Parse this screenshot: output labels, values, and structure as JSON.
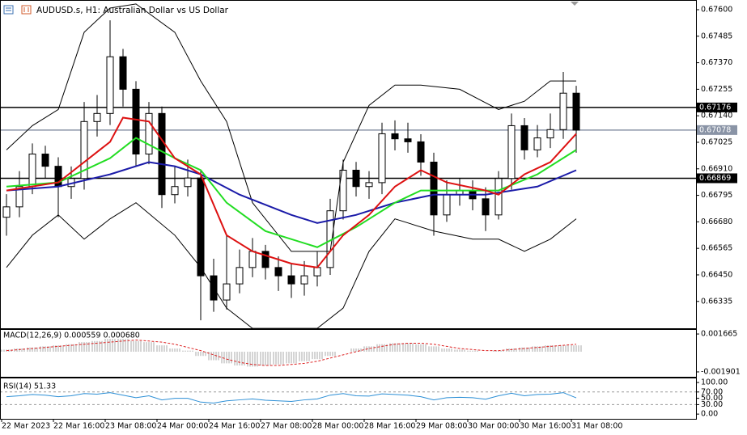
{
  "chart_data": [
    {
      "type": "candlestick",
      "title": "AUDUSD.s, H1:  Australian Dollar vs US Dollar",
      "categories": [
        "22 Mar 2023",
        null,
        null,
        null,
        "22 Mar 16:00",
        null,
        null,
        null,
        "23 Mar 08:00",
        null,
        null,
        null,
        "24 Mar 00:00",
        null,
        null,
        null,
        "24 Mar 16:00",
        null,
        null,
        null,
        "27 Mar 08:00",
        null,
        null,
        null,
        "28 Mar 00:00",
        null,
        null,
        null,
        "28 Mar 16:00",
        null,
        null,
        null,
        "29 Mar 08:00",
        null,
        null,
        null,
        "30 Mar 00:00",
        null,
        null,
        null,
        "30 Mar 16:00",
        null,
        null,
        null,
        "31 Mar 08:00"
      ],
      "open": [
        0.667,
        0.66745,
        0.66833,
        0.66974,
        0.66921,
        0.66833,
        0.66868,
        0.67115,
        0.6715,
        0.67396,
        0.67255,
        0.66974,
        0.6715,
        0.66798,
        0.66833,
        0.6687,
        0.66446,
        0.66341,
        0.66411,
        0.66482,
        0.66552,
        0.66482,
        0.66446,
        0.66411,
        0.66446,
        0.66482,
        0.66728,
        0.66904,
        0.66833,
        0.6685,
        0.67062,
        0.6704,
        0.67027,
        0.66939,
        0.6671,
        0.66798,
        0.66816,
        0.6678,
        0.6671,
        0.66868,
        0.67097,
        0.66992,
        0.67044,
        0.6708,
        0.67238
      ],
      "high": [
        0.668,
        0.669,
        0.6702,
        0.6701,
        0.6696,
        0.6692,
        0.672,
        0.6723,
        0.67554,
        0.6743,
        0.6729,
        0.672,
        0.6718,
        0.6692,
        0.6695,
        0.669,
        0.6652,
        0.6662,
        0.6656,
        0.6661,
        0.6658,
        0.6653,
        0.665,
        0.6651,
        0.6655,
        0.6678,
        0.6695,
        0.6694,
        0.669,
        0.6711,
        0.6712,
        0.6711,
        0.6706,
        0.6698,
        0.6686,
        0.6687,
        0.6686,
        0.6683,
        0.669,
        0.6715,
        0.6713,
        0.671,
        0.6715,
        0.6733,
        0.6727
      ],
      "low": [
        0.6662,
        0.667,
        0.668,
        0.6687,
        0.667,
        0.6678,
        0.6682,
        0.6705,
        0.671,
        0.6718,
        0.6692,
        0.6693,
        0.6674,
        0.6676,
        0.6679,
        0.66253,
        0.6629,
        0.663,
        0.6637,
        0.6644,
        0.6643,
        0.6638,
        0.6635,
        0.6636,
        0.664,
        0.6645,
        0.6669,
        0.6679,
        0.6678,
        0.668,
        0.6699,
        0.6698,
        0.6688,
        0.6662,
        0.6668,
        0.6675,
        0.6673,
        0.6664,
        0.6669,
        0.6682,
        0.6695,
        0.6696,
        0.67,
        0.6704,
        0.6698
      ],
      "close": [
        0.66745,
        0.66833,
        0.66974,
        0.66921,
        0.66833,
        0.66868,
        0.67115,
        0.6715,
        0.67396,
        0.67255,
        0.66974,
        0.6715,
        0.66798,
        0.66833,
        0.6687,
        0.66446,
        0.66341,
        0.66411,
        0.66482,
        0.66552,
        0.66482,
        0.66446,
        0.66411,
        0.66446,
        0.66482,
        0.66728,
        0.66904,
        0.66833,
        0.6685,
        0.67062,
        0.6704,
        0.67027,
        0.66939,
        0.6671,
        0.66798,
        0.66816,
        0.6678,
        0.6671,
        0.66868,
        0.67097,
        0.66992,
        0.67044,
        0.6708,
        0.67238,
        0.67078
      ],
      "up_color": "#ffffff",
      "down_color": "#000000",
      "wick_color": "#000000",
      "series": [
        {
          "color": "#000000",
          "x": [
            0,
            2,
            4,
            6,
            8,
            10,
            13,
            15,
            17,
            19,
            22,
            25,
            26,
            28,
            30,
            32,
            35,
            38,
            40,
            42,
            44
          ],
          "values": [
            0.66992,
            0.67097,
            0.67167,
            0.67502,
            0.67607,
            0.67625,
            0.67502,
            0.67291,
            0.67115,
            0.66763,
            0.66552,
            0.66552,
            0.66939,
            0.67185,
            0.67273,
            0.67273,
            0.67255,
            0.67167,
            0.67203,
            0.67291,
            0.67291
          ]
        },
        {
          "color": "#000000",
          "x": [
            0,
            2,
            4,
            6,
            8,
            10,
            13,
            15,
            17,
            19,
            24,
            26,
            28,
            30,
            33,
            36,
            38,
            40,
            42,
            44
          ],
          "values": [
            0.66482,
            0.66622,
            0.6671,
            0.66605,
            0.66693,
            0.66763,
            0.66622,
            0.66482,
            0.66306,
            0.66218,
            0.66218,
            0.66306,
            0.66552,
            0.66693,
            0.6664,
            0.66605,
            0.66605,
            0.66552,
            0.66605,
            0.66693
          ]
        },
        {
          "color": "#1a1aa8",
          "x": [
            0,
            4,
            8,
            11,
            13,
            15,
            18,
            22,
            24,
            27,
            30,
            33,
            37,
            41,
            44
          ],
          "values": [
            0.66816,
            0.66833,
            0.66886,
            0.66939,
            0.66921,
            0.66886,
            0.66798,
            0.6671,
            0.66675,
            0.6671,
            0.66763,
            0.66798,
            0.66798,
            0.66833,
            0.66904
          ]
        },
        {
          "color": "#22dd22",
          "x": [
            0,
            4,
            8,
            10,
            13,
            15,
            17,
            20,
            24,
            27,
            30,
            32,
            35,
            38,
            41,
            44
          ],
          "values": [
            0.66833,
            0.66851,
            0.66956,
            0.67044,
            0.66956,
            0.66904,
            0.66763,
            0.6664,
            0.6657,
            0.66657,
            0.66763,
            0.66816,
            0.66816,
            0.66816,
            0.66886,
            0.66992
          ]
        },
        {
          "color": "#dd1111",
          "x": [
            0,
            4,
            8,
            9,
            11,
            13,
            15,
            17,
            19,
            22,
            24,
            26,
            28,
            30,
            32,
            34,
            37,
            38,
            40,
            42,
            44
          ],
          "values": [
            0.66816,
            0.66851,
            0.67027,
            0.67132,
            0.67115,
            0.66956,
            0.66886,
            0.66622,
            0.66552,
            0.66499,
            0.66482,
            0.66622,
            0.6671,
            0.66833,
            0.66904,
            0.66851,
            0.66816,
            0.66798,
            0.66886,
            0.66939,
            0.67062
          ]
        }
      ],
      "hlines": [
        {
          "value": 0.67176,
          "color": "#000000"
        },
        {
          "value": 0.67078,
          "color": "#8a94a6"
        },
        {
          "value": 0.66869,
          "color": "#000000"
        }
      ],
      "ylim": [
        0.66222,
        0.67628
      ],
      "yticks": [
        {
          "value": 0.676,
          "label": "0.67600"
        },
        0.67485,
        {
          "value": 0.6737,
          "label": "0.67370"
        },
        0.67255,
        {
          "value": 0.6714,
          "label": "0.67140"
        },
        0.67025,
        {
          "value": 0.6691,
          "label": "0.66910"
        },
        0.66795,
        {
          "value": 0.6668,
          "label": "0.66680"
        },
        0.66565,
        {
          "value": 0.6645,
          "label": "0.66450"
        },
        0.66335
      ]
    },
    {
      "type": "macd",
      "title": "MACD(12,26,9) 0.000559 0.000680",
      "series": [
        {
          "type": "bar",
          "color": "#a8a8a8",
          "values": [
            0.0002,
            0.0003,
            0.0004,
            0.0005,
            0.0006,
            0.0007,
            0.0009,
            0.001,
            0.0012,
            0.0012,
            0.001,
            0.0009,
            0.0006,
            0.0003,
            0.0001,
            -0.0004,
            -0.0008,
            -0.0011,
            -0.0013,
            -0.0014,
            -0.0013,
            -0.0012,
            -0.0011,
            -0.0009,
            -0.0007,
            -0.0004,
            0,
            0.0003,
            0.0005,
            0.0007,
            0.0008,
            0.0008,
            0.0007,
            0.0005,
            0.0003,
            0.0002,
            0.0001,
            0,
            0.0001,
            0.0003,
            0.0004,
            0.0005,
            0.0006,
            0.0006,
            0.0006
          ]
        },
        {
          "type": "line",
          "color": "#dd2222",
          "dashed": true,
          "values": [
            0.0001,
            0.0002,
            0.0003,
            0.0004,
            0.0005,
            0.0006,
            0.0007,
            0.0008,
            0.0009,
            0.001,
            0.0011,
            0.001,
            0.0009,
            0.0007,
            0.0004,
            0.0001,
            -0.0003,
            -0.0007,
            -0.001,
            -0.0012,
            -0.0013,
            -0.0013,
            -0.0012,
            -0.0011,
            -0.0009,
            -0.0006,
            -0.0003,
            0,
            0.0003,
            0.0005,
            0.0007,
            0.0008,
            0.0008,
            0.0007,
            0.0005,
            0.0003,
            0.0002,
            0.0001,
            0.0001,
            0.0002,
            0.0003,
            0.0004,
            0.0005,
            0.0006,
            0.0007
          ]
        }
      ],
      "ylim": [
        -0.00236,
        0.00205
      ],
      "yticks": [
        0.001665,
        -0.001901
      ]
    },
    {
      "type": "line",
      "title": "RSI(14) 51.33",
      "color": "#2c8fd6",
      "values": [
        55,
        58,
        62,
        60,
        55,
        58,
        65,
        63,
        68,
        60,
        52,
        58,
        45,
        50,
        50,
        38,
        35,
        42,
        45,
        48,
        44,
        42,
        40,
        45,
        48,
        60,
        65,
        58,
        57,
        64,
        62,
        60,
        55,
        45,
        52,
        53,
        52,
        47,
        58,
        66,
        58,
        62,
        63,
        68,
        51.33
      ],
      "levels": [
        70,
        30
      ],
      "ylim": [
        -15,
        113
      ],
      "yticks": [
        {
          "value": 100,
          "label": "100.00"
        },
        {
          "value": 70,
          "label": "70.00"
        },
        {
          "value": 50,
          "label": "50.00"
        },
        {
          "value": 30,
          "label": "30.00"
        },
        {
          "value": 0,
          "label": "0.00"
        }
      ]
    }
  ]
}
